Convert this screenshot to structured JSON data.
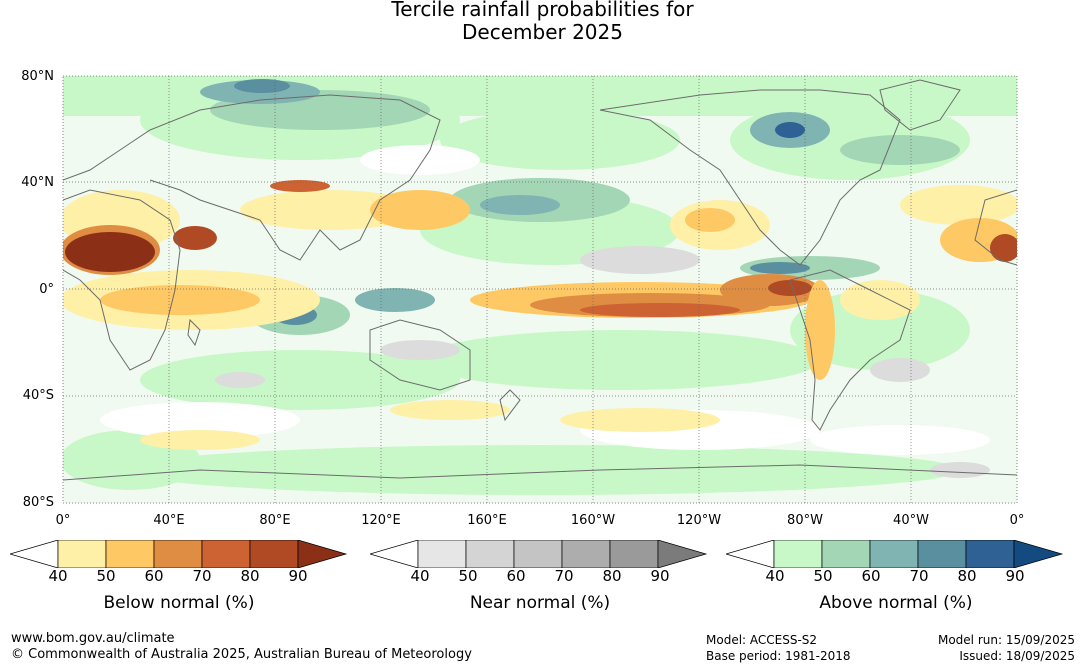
{
  "title_line1": "Tercile rainfall probabilities for",
  "title_line2": "December 2025",
  "lat_labels": [
    "80°N",
    "40°N",
    "0°",
    "40°S",
    "80°S"
  ],
  "lon_labels": [
    "0°",
    "40°E",
    "80°E",
    "120°E",
    "160°E",
    "160°W",
    "120°W",
    "80°W",
    "40°W",
    "0°"
  ],
  "colorbars": [
    {
      "title": "Below normal (%)",
      "ticks": [
        "40",
        "50",
        "60",
        "70",
        "80",
        "90"
      ],
      "colors": [
        "#ffffff",
        "#fff0a8",
        "#fec965",
        "#e08d44",
        "#cd6332",
        "#b04a25",
        "#8c2f17"
      ]
    },
    {
      "title": "Near normal (%)",
      "ticks": [
        "40",
        "50",
        "60",
        "70",
        "80",
        "90"
      ],
      "colors": [
        "#ffffff",
        "#e6e6e6",
        "#d4d4d4",
        "#c4c4c4",
        "#adadad",
        "#9a9a9a",
        "#7b7b7b"
      ]
    },
    {
      "title": "Above normal (%)",
      "ticks": [
        "40",
        "50",
        "60",
        "70",
        "80",
        "90"
      ],
      "colors": [
        "#ffffff",
        "#c8f8c8",
        "#a3d6b5",
        "#80b4b2",
        "#5a8fa0",
        "#2f6194",
        "#134b80"
      ]
    }
  ],
  "footer": {
    "website": "www.bom.gov.au/climate",
    "copyright": "© Commonwealth of Australia 2025, Australian Bureau of Meteorology",
    "model": "Model: ACCESS-S2",
    "base_period": "Base period: 1981-2018",
    "model_run": "Model run: 15/09/2025",
    "issued": "Issued: 18/09/2025"
  },
  "map_colors": {
    "ocean_base": "#f3fbf3",
    "green_light": "#c8f8c8",
    "teal": "#80b4b2",
    "blue": "#2f6194",
    "yellow": "#fff0a8",
    "orange": "#e08d44",
    "brown": "#8c2f17",
    "grey": "#dcdcdc",
    "coast": "#6b6b6b"
  }
}
